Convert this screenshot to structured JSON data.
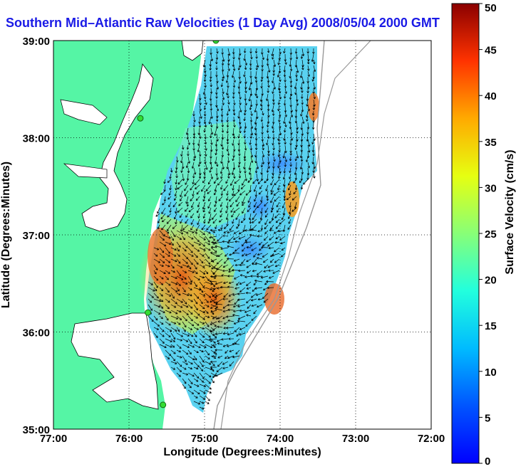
{
  "title": "Southern Mid–Atlantic Raw Velocities (1 Day Avg) 2008/05/04 2000 GMT",
  "map": {
    "x_axis_label": "Longitude (Degrees:Minutes)",
    "y_axis_label": "Latitude (Degrees:Minutes)",
    "x_ticks": [
      "77:00",
      "76:00",
      "75:00",
      "74:00",
      "73:00",
      "72:00"
    ],
    "y_ticks": [
      "39:00",
      "38:00",
      "37:00",
      "36:00",
      "35:00"
    ],
    "lon_range": [
      -77,
      -72
    ],
    "lat_range": [
      35,
      39
    ],
    "grid": "dotted",
    "land_color": "#55f5a5",
    "stations": [
      {
        "lon": -74.85,
        "lat": 39.0
      },
      {
        "lon": -75.85,
        "lat": 38.2
      },
      {
        "lon": -75.75,
        "lat": 36.2
      },
      {
        "lon": -75.55,
        "lat": 35.25
      }
    ]
  },
  "colorbar": {
    "label": "Surface Velocity (cm/s)",
    "ticks": [
      "50",
      "45",
      "40",
      "35",
      "30",
      "25",
      "20",
      "15",
      "10",
      "5",
      "0"
    ],
    "range": [
      0,
      50
    ],
    "colormap": "jet"
  }
}
